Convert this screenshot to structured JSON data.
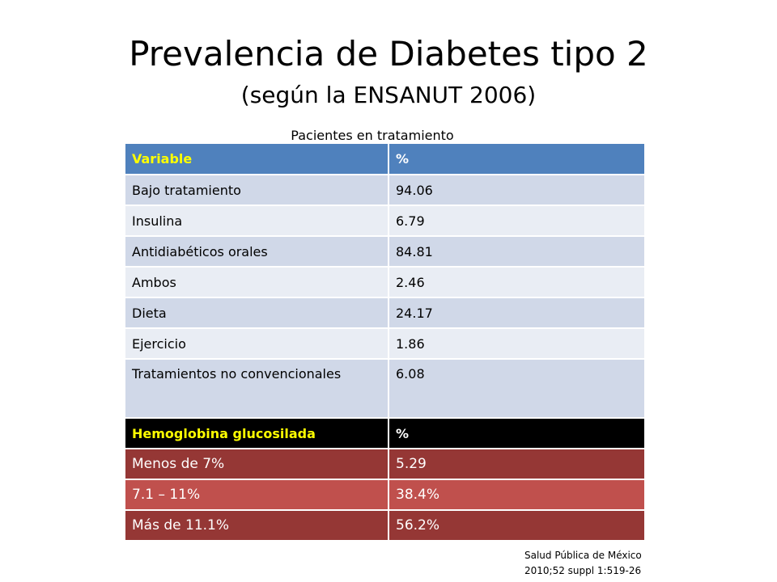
{
  "title": "Prevalencia de Diabetes tipo 2",
  "subtitle": "(según la ENSANUT 2006)",
  "caption": "Pacientes en tratamiento",
  "table": {
    "header": {
      "variable": "Variable",
      "percent": "%"
    },
    "rows": [
      {
        "label": "Bajo tratamiento",
        "value": "94.06"
      },
      {
        "label": "Insulina",
        "value": "6.79"
      },
      {
        "label": "Antidiabéticos orales",
        "value": "84.81"
      },
      {
        "label": "Ambos",
        "value": "2.46"
      },
      {
        "label": "Dieta",
        "value": "24.17"
      },
      {
        "label": "Ejercicio",
        "value": "1.86"
      },
      {
        "label": "Tratamientos no convencionales",
        "value": "6.08"
      }
    ],
    "header2": {
      "variable": "Hemoglobina glucosilada",
      "percent": "%"
    },
    "rows2": [
      {
        "label": "Menos de 7%",
        "value": "5.29"
      },
      {
        "label": "7.1 – 11%",
        "value": "38.4%"
      },
      {
        "label": "Más de 11.1%",
        "value": "56.2%"
      }
    ]
  },
  "source": {
    "line1": "Salud Pública de México",
    "line2": "2010;52 suppl 1:519-26"
  },
  "colors": {
    "header_blue": "#4f81bd",
    "row_odd": "#d0d8e8",
    "row_even": "#e9edf4",
    "header_black": "#000000",
    "red_dark": "#953735",
    "red_light": "#c0504d",
    "header_text_yellow": "#ffff00"
  }
}
